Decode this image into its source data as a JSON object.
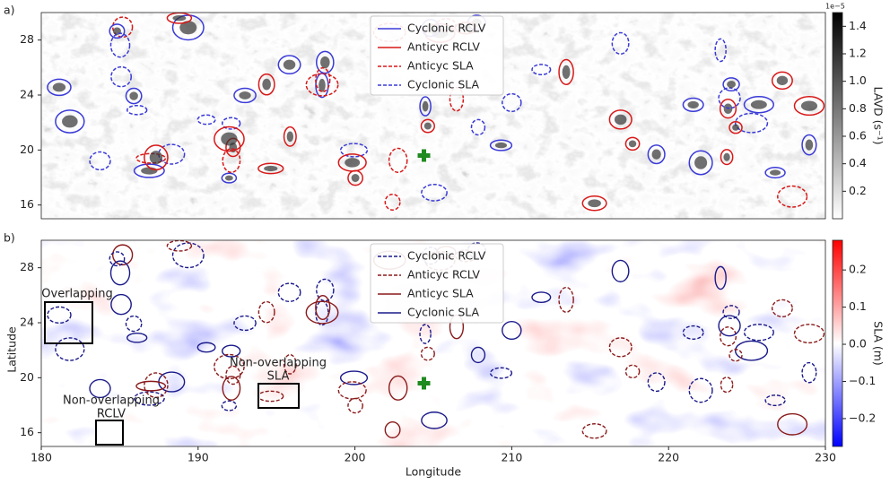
{
  "chart_data": [
    {
      "type": "heatmap",
      "panel_label": "a)",
      "xlim": [
        180,
        230
      ],
      "ylim": [
        15,
        30
      ],
      "yticks": [
        16,
        20,
        24,
        28
      ],
      "legend": [
        {
          "name": "Cyclonic RCLV",
          "color": "#3a3ad8",
          "dash": "solid"
        },
        {
          "name": "Anticyc RCLV",
          "color": "#d81818",
          "dash": "solid"
        },
        {
          "name": "Anticyc SLA",
          "color": "#d81818",
          "dash": "dashed"
        },
        {
          "name": "Cyclonic SLA",
          "color": "#3a3ad8",
          "dash": "dashed"
        }
      ],
      "marker": {
        "x": 204.4,
        "y": 19.6,
        "color": "#1f8a1f"
      },
      "colorbar": {
        "label": "LAVD (s⁻¹)",
        "offset_label": "1e−5",
        "lim": [
          0,
          1.5
        ],
        "ticks": [
          0.2,
          0.4,
          0.6,
          0.8,
          {
            "value": 1.0,
            "label": "1.0"
          },
          1.2,
          1.4
        ]
      }
    },
    {
      "type": "heatmap",
      "panel_label": "b)",
      "xlabel": "Longitude",
      "ylabel": "Latitude",
      "xlim": [
        180,
        230
      ],
      "ylim": [
        15,
        30
      ],
      "xticks": [
        180,
        190,
        200,
        210,
        220,
        230
      ],
      "yticks": [
        16,
        20,
        24,
        28
      ],
      "legend": [
        {
          "name": "Cyclonic RCLV",
          "color": "#1a1a8a",
          "dash": "dashed"
        },
        {
          "name": "Anticyc RCLV",
          "color": "#8a1a1a",
          "dash": "dashed"
        },
        {
          "name": "Anticyc SLA",
          "color": "#8a1a1a",
          "dash": "solid"
        },
        {
          "name": "Cyclonic SLA",
          "color": "#1a1a8a",
          "dash": "solid"
        }
      ],
      "marker": {
        "x": 204.4,
        "y": 19.6,
        "color": "#1f8a1f"
      },
      "annotations": [
        [
          "Overlapping"
        ],
        [
          "Non-overlapping",
          "SLA"
        ],
        [
          "Non-overlapping",
          "RCLV"
        ]
      ],
      "colorbar": {
        "label": "SLA (m)",
        "lim": [
          -0.275,
          0.28
        ],
        "ticks": [
          {
            "value": -0.2,
            "label": "−0.2"
          },
          {
            "value": -0.1,
            "label": "−0.1"
          },
          {
            "value": 0.0,
            "label": "0.0"
          },
          0.1,
          0.2
        ]
      }
    }
  ]
}
